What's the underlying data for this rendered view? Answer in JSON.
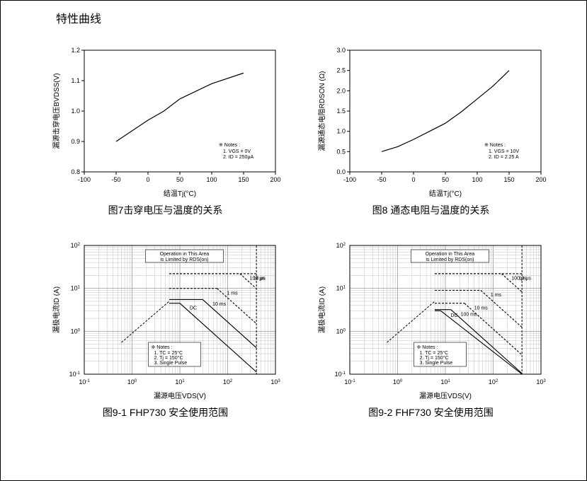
{
  "page_title": "特性曲线",
  "background_color": "#ffffff",
  "border_color": "#000000",
  "grid_color": "#c0c0c0",
  "grid_color_major": "#888888",
  "text_color": "#000000",
  "font_family": "Arial",
  "chart7": {
    "type": "line",
    "caption": "图7击穿电压与温度的关系",
    "xlabel": "结温Tj(°C)",
    "ylabel": "漏源击穿电压BVDSS(V)",
    "xlim": [
      -100,
      200
    ],
    "ylim": [
      0.8,
      1.2
    ],
    "xtick_step": 50,
    "ytick_step": 0.1,
    "xticks": [
      -100,
      -50,
      0,
      50,
      100,
      150,
      200
    ],
    "yticks": [
      0.8,
      0.9,
      1.0,
      1.1,
      1.2
    ],
    "line_color": "#000000",
    "line_width": 1.2,
    "data": {
      "x": [
        -50,
        0,
        25,
        50,
        100,
        150
      ],
      "y": [
        0.9,
        0.97,
        1.0,
        1.04,
        1.09,
        1.125
      ]
    },
    "labels_fontsize": 10,
    "tick_fontsize": 9,
    "notes": {
      "title": "※ Notes :",
      "lines": [
        "1. VGS = 0V",
        "2. ID = 250μA"
      ],
      "position": "bottom-right"
    }
  },
  "chart8": {
    "type": "line",
    "caption": "图8 通态电阻与温度的关系",
    "xlabel": "结温Tj(°C)",
    "ylabel": "漏源通态电阻RDSON (Ω)",
    "xlim": [
      -100,
      200
    ],
    "ylim": [
      0,
      3.0
    ],
    "xtick_step": 50,
    "ytick_step": 0.5,
    "xticks": [
      -100,
      -50,
      0,
      50,
      100,
      150,
      200
    ],
    "yticks": [
      0,
      0.5,
      1.0,
      1.5,
      2.0,
      2.5,
      3.0
    ],
    "line_color": "#000000",
    "line_width": 1.2,
    "data": {
      "x": [
        -50,
        -25,
        0,
        25,
        50,
        75,
        100,
        125,
        150
      ],
      "y": [
        0.5,
        0.62,
        0.8,
        1.0,
        1.2,
        1.48,
        1.8,
        2.12,
        2.5
      ]
    },
    "labels_fontsize": 10,
    "tick_fontsize": 9,
    "notes": {
      "title": "※ Notes :",
      "lines": [
        "1. VGS = 10V",
        "2. ID = 2.25 A"
      ],
      "position": "bottom-right"
    }
  },
  "chart9_1": {
    "type": "soa-loglog",
    "caption": "图9-1 FHP730 安全使用范围",
    "xlabel": "漏源电压VDS(V)",
    "ylabel": "漏极电流ID (A)",
    "xlim_exp": [
      -1,
      3
    ],
    "ylim_exp": [
      -1,
      2
    ],
    "xticks_exp": [
      -1,
      0,
      1,
      2,
      3
    ],
    "yticks_exp": [
      -1,
      0,
      1,
      2
    ],
    "grid_minor": true,
    "line_color": "#000000",
    "line_width": 1.1,
    "right_limit_x": 400,
    "rdson_limit": {
      "x": [
        0.6,
        6
      ],
      "y": [
        0.55,
        5
      ],
      "style": "dashed"
    },
    "curves": [
      {
        "label": "10 μs",
        "y_flat": 22,
        "x_knee": 400,
        "style": "dashed"
      },
      {
        "label": "100 μs",
        "y_flat": 22,
        "x_knee": 180,
        "style": "dashed"
      },
      {
        "label": "1 ms",
        "y_flat": 10,
        "x_knee": 60,
        "style": "dashed"
      },
      {
        "label": "10 ms",
        "y_flat": 5.5,
        "x_knee": 30,
        "style": "solid"
      },
      {
        "label": "DC",
        "y_flat": 4.5,
        "x_knee": 10,
        "style": "solid"
      }
    ],
    "labels_fontsize": 10,
    "tick_fontsize": 9,
    "rdson_box": {
      "text": [
        "Operation in This Area",
        "is Limited by RDS(on)"
      ],
      "position": "top-center"
    },
    "notes": {
      "title": "※ Notes :",
      "lines": [
        "1. TC = 25°C",
        "2. Tj = 150°C",
        "3. Single Pulse"
      ],
      "position": "bottom-center"
    }
  },
  "chart9_2": {
    "type": "soa-loglog",
    "caption": "图9-2 FHF730 安全使用范围",
    "xlabel": "漏源电压VDS(V)",
    "ylabel": "漏极电流ID (A)",
    "xlim_exp": [
      -1,
      3
    ],
    "ylim_exp": [
      -1,
      2
    ],
    "xticks_exp": [
      -1,
      0,
      1,
      2,
      3
    ],
    "yticks_exp": [
      -1,
      0,
      1,
      2
    ],
    "grid_minor": true,
    "line_color": "#000000",
    "line_width": 1.1,
    "right_limit_x": 400,
    "rdson_limit": {
      "x": [
        0.6,
        6
      ],
      "y": [
        0.55,
        5
      ],
      "style": "dashed"
    },
    "curves": [
      {
        "label": "10 μs",
        "y_flat": 22,
        "x_knee": 400,
        "style": "dashed"
      },
      {
        "label": "100 μs",
        "y_flat": 22,
        "x_knee": 150,
        "style": "dashed"
      },
      {
        "label": "1 ms",
        "y_flat": 9,
        "x_knee": 55,
        "style": "dashed"
      },
      {
        "label": "10 ms",
        "y_flat": 4.5,
        "x_knee": 25,
        "style": "dashed"
      },
      {
        "label": "100 ms",
        "y_flat": 3.2,
        "x_knee": 13,
        "style": "solid"
      },
      {
        "label": "DC",
        "y_flat": 3.0,
        "x_knee": 8,
        "style": "solid"
      }
    ],
    "labels_fontsize": 10,
    "tick_fontsize": 9,
    "rdson_box": {
      "text": [
        "Operation in This Area",
        "is Limited by RDS(on)"
      ],
      "position": "top-center"
    },
    "notes": {
      "title": "※ Notes :",
      "lines": [
        "1. TC = 25°C",
        "2. Tj = 150°C",
        "3. Single Pulse"
      ],
      "position": "bottom-center"
    }
  }
}
